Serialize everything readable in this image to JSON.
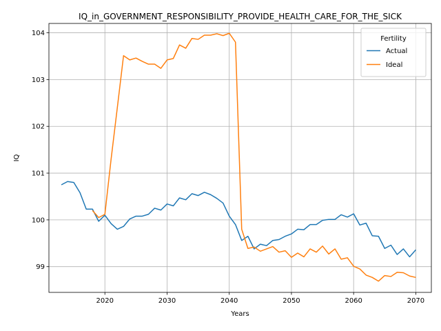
{
  "chart_data": {
    "type": "line",
    "title": "IQ_in_GOVERNMENT_RESPONSIBILITY_PROVIDE_HEALTH_CARE_FOR_THE_SICK",
    "xlabel": "Years",
    "ylabel": "IQ",
    "xlim": [
      2011,
      2072.5
    ],
    "ylim": [
      98.45,
      104.2
    ],
    "xticks": [
      2020,
      2030,
      2040,
      2050,
      2060,
      2070
    ],
    "yticks": [
      99,
      100,
      101,
      102,
      103,
      104
    ],
    "grid": true,
    "legend": {
      "title": "Fertility",
      "placement": "top-right"
    },
    "colors": {
      "Actual": "#1f77b4",
      "Ideal": "#ff7f0e"
    },
    "series": [
      {
        "name": "Actual",
        "x": [
          2013,
          2014,
          2015,
          2016,
          2017,
          2018,
          2019,
          2020,
          2021,
          2022,
          2023,
          2024,
          2025,
          2026,
          2027,
          2028,
          2029,
          2030,
          2031,
          2032,
          2033,
          2034,
          2035,
          2036,
          2037,
          2038,
          2039,
          2040,
          2041,
          2042,
          2043,
          2044,
          2045,
          2046,
          2047,
          2048,
          2049,
          2050,
          2051,
          2052,
          2053,
          2054,
          2055,
          2056,
          2057,
          2058,
          2059,
          2060,
          2061,
          2062,
          2063,
          2064,
          2065,
          2066,
          2067,
          2068,
          2069,
          2070
        ],
        "values": [
          100.75,
          100.82,
          100.8,
          100.58,
          100.23,
          100.23,
          99.97,
          100.1,
          99.92,
          99.8,
          99.86,
          100.02,
          100.08,
          100.08,
          100.12,
          100.25,
          100.21,
          100.34,
          100.3,
          100.47,
          100.43,
          100.56,
          100.52,
          100.59,
          100.54,
          100.46,
          100.36,
          100.08,
          99.9,
          99.56,
          99.65,
          99.38,
          99.48,
          99.45,
          99.56,
          99.58,
          99.65,
          99.7,
          99.8,
          99.79,
          99.9,
          99.9,
          99.99,
          100.01,
          100.01,
          100.11,
          100.06,
          100.13,
          99.89,
          99.93,
          99.66,
          99.65,
          99.39,
          99.46,
          99.26,
          99.38,
          99.21,
          99.36
        ]
      },
      {
        "name": "Ideal",
        "x": [
          2018,
          2019,
          2020,
          2021,
          2022,
          2023,
          2024,
          2025,
          2026,
          2027,
          2028,
          2029,
          2030,
          2031,
          2032,
          2033,
          2034,
          2035,
          2036,
          2037,
          2038,
          2039,
          2040,
          2041,
          2042,
          2043,
          2044,
          2045,
          2046,
          2047,
          2048,
          2049,
          2050,
          2051,
          2052,
          2053,
          2054,
          2055,
          2056,
          2057,
          2058,
          2059,
          2060,
          2061,
          2062,
          2063,
          2064,
          2065,
          2066,
          2067,
          2068,
          2069,
          2070
        ],
        "values": [
          100.2,
          100.05,
          100.12,
          101.3,
          102.4,
          103.51,
          103.42,
          103.46,
          103.39,
          103.33,
          103.33,
          103.24,
          103.42,
          103.45,
          103.74,
          103.67,
          103.88,
          103.86,
          103.95,
          103.95,
          103.98,
          103.94,
          103.99,
          103.8,
          99.8,
          99.39,
          99.42,
          99.33,
          99.38,
          99.43,
          99.31,
          99.34,
          99.2,
          99.29,
          99.21,
          99.38,
          99.31,
          99.44,
          99.27,
          99.38,
          99.16,
          99.19,
          99.01,
          98.95,
          98.82,
          98.77,
          98.69,
          98.81,
          98.79,
          98.88,
          98.87,
          98.8,
          98.77
        ]
      }
    ]
  }
}
